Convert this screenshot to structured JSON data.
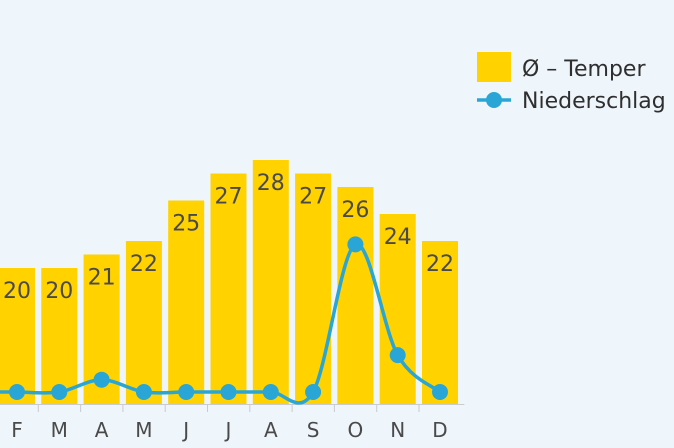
{
  "chart_data": {
    "type": "bar",
    "categories": [
      "F",
      "M",
      "A",
      "M",
      "J",
      "J",
      "A",
      "S",
      "O",
      "N",
      "D"
    ],
    "series": [
      {
        "name": "Ø – Temper",
        "type": "bar",
        "values": [
          20,
          20,
          21,
          22,
          25,
          27,
          28,
          27,
          26,
          24,
          22
        ],
        "color": "#ffd200"
      },
      {
        "name": "Niederschlag",
        "type": "line",
        "values": [
          0,
          0,
          1,
          0,
          0,
          0,
          0,
          0,
          12,
          3,
          0
        ],
        "color": "#2aa6d6"
      }
    ],
    "legend": {
      "position": "top-right"
    },
    "grid": false
  }
}
